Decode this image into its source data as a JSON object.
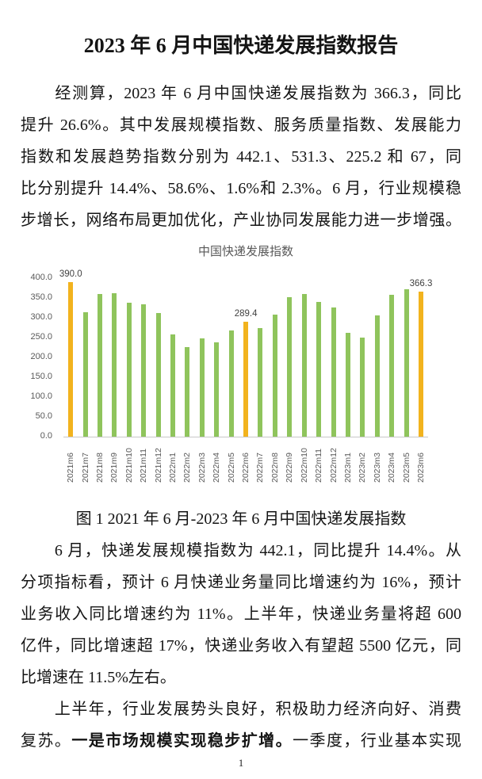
{
  "page": {
    "title": "2023 年 6 月中国快递发展指数报告",
    "page_number": "1"
  },
  "paragraphs": [
    {
      "lines": [
        {
          "segments": [
            {
              "text": "　　经测算，2023 年 6 月中国快递发展指数为 366.3，同比"
            }
          ],
          "justify": true
        },
        {
          "segments": [
            {
              "text": "提升 26.6%。其中发展规模指数、服务质量指数、发展能力"
            }
          ],
          "justify": true
        },
        {
          "segments": [
            {
              "text": "指数和发展趋势指数分别为 442.1、531.3、225.2 和 67，同"
            }
          ],
          "justify": true
        },
        {
          "segments": [
            {
              "text": "比分别提升 14.4%、58.6%、1.6%和 2.3%。6 月，行业规模稳"
            }
          ],
          "justify": true
        },
        {
          "segments": [
            {
              "text": "步增长，网络布局更加优化，产业协同发展能力进一步增强。"
            }
          ],
          "justify": true
        }
      ]
    },
    {
      "lines": [
        {
          "segments": [
            {
              "text": "　　6 月，快递发展规模指数为 442.1，同比提升 14.4%。从"
            }
          ],
          "justify": true
        },
        {
          "segments": [
            {
              "text": "分项指标看，预计 6 月快递业务量同比增速约为 16%，预计"
            }
          ],
          "justify": true
        },
        {
          "segments": [
            {
              "text": "业务收入同比增速约为 11%。上半年，快递业务量将超 600"
            }
          ],
          "justify": true
        },
        {
          "segments": [
            {
              "text": "亿件，同比增速超 17%，快递业务收入有望超 5500 亿元，同"
            }
          ],
          "justify": true
        },
        {
          "segments": [
            {
              "text": "比增速在 11.5%左右。"
            }
          ],
          "justify": false
        }
      ]
    },
    {
      "lines": [
        {
          "segments": [
            {
              "text": "　　上半年，行业发展势头良好，积极助力经济向好、消费"
            }
          ],
          "justify": true
        },
        {
          "segments": [
            {
              "text": "复苏。"
            },
            {
              "text": "一是市场规模实现稳步扩增。",
              "bold": true
            },
            {
              "text": "一季度，行业基本实现"
            }
          ],
          "justify": true
        }
      ]
    }
  ],
  "figure_caption": "图 1 2021 年 6 月-2023 年 6 月中国快递发展指数",
  "chart_data": {
    "type": "bar",
    "title": "中国快递发展指数",
    "categories": [
      "2021m6",
      "2021m7",
      "2021m8",
      "2021m9",
      "2021m10",
      "2021m11",
      "2021m12",
      "2022m1",
      "2022m2",
      "2022m3",
      "2022m4",
      "2022m5",
      "2022m6",
      "2022m7",
      "2022m8",
      "2022m9",
      "2022m10",
      "2022m11",
      "2022m12",
      "2023m1",
      "2023m2",
      "2023m3",
      "2023m4",
      "2023m5",
      "2023m6"
    ],
    "values": [
      390.0,
      314,
      360,
      362,
      338,
      334,
      312,
      258,
      226,
      248,
      238,
      268,
      289.4,
      274,
      308,
      352,
      360,
      340,
      326,
      262,
      250,
      306,
      358,
      372,
      366.3
    ],
    "point_labels": {
      "0": "390.0",
      "12": "289.4",
      "24": "366.3"
    },
    "highlight_indices": [
      0,
      12,
      24
    ],
    "xlabel": "",
    "ylabel": "",
    "ylim": [
      0,
      400
    ],
    "ytick_step": 50,
    "grid": false,
    "legend": null,
    "colors": {
      "bar": "#8FC45C",
      "highlight": "#F2B31E",
      "axis_text": "#595959",
      "data_label": "#404040",
      "axis_line": "#C8C8C8",
      "title_text": "#595959"
    }
  }
}
